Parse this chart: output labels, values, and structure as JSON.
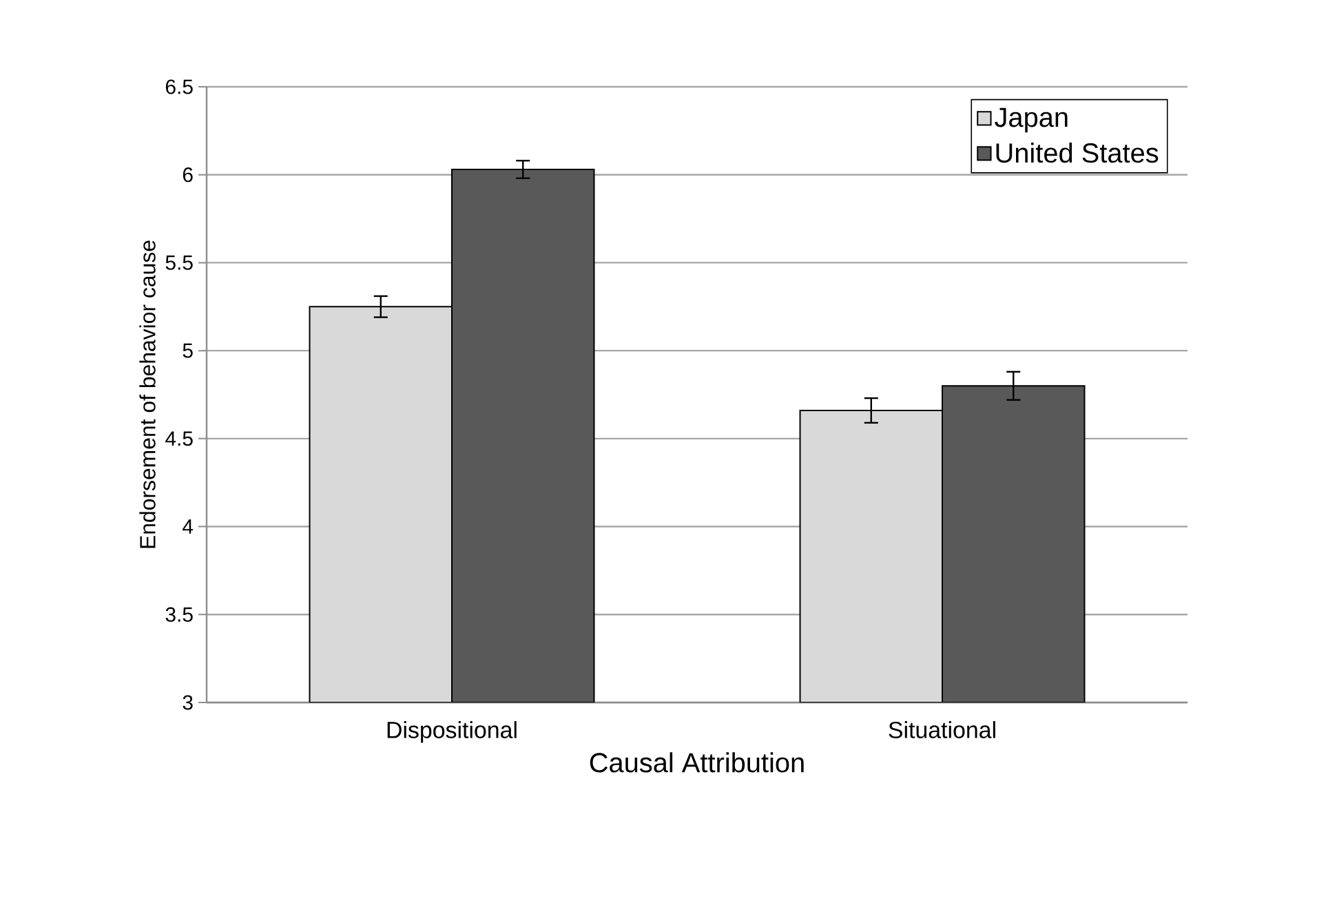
{
  "chart_data": {
    "type": "bar",
    "xlabel": "Causal Attribution",
    "ylabel": "Endorsement of behavior cause",
    "categories": [
      "Dispositional",
      "Situational"
    ],
    "series": [
      {
        "name": "Japan",
        "color": "#d9d9d9",
        "values": [
          5.25,
          4.66
        ],
        "errors": [
          0.06,
          0.07
        ]
      },
      {
        "name": "United States",
        "color": "#595959",
        "values": [
          6.03,
          4.8
        ],
        "errors": [
          0.05,
          0.08
        ]
      }
    ],
    "ylim": [
      3,
      6.5
    ],
    "yticks": [
      3,
      3.5,
      4,
      4.5,
      5,
      5.5,
      6,
      6.5
    ],
    "grid": "y",
    "legend": "top right"
  }
}
